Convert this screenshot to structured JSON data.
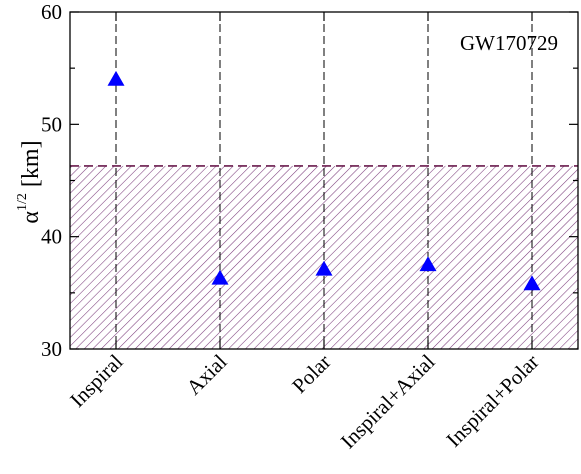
{
  "chart_data": {
    "type": "scatter",
    "categories": [
      "Inspiral",
      "Axial",
      "Polar",
      "Inspiral+Axial",
      "Inspiral+Polar"
    ],
    "values": [
      54.0,
      36.3,
      37.1,
      37.5,
      35.8
    ],
    "ylim": [
      30,
      60
    ],
    "yticks": [
      30,
      40,
      50,
      60
    ],
    "ylabel": {
      "base": "α",
      "sup": "1/2",
      "unit": "[km]"
    },
    "xlabel": "",
    "annotation": "GW170729",
    "excluded_region": {
      "from": 30,
      "to": 46.3
    },
    "marker": "triangle-up",
    "grid": "dashed vertical lines at categories",
    "colors": {
      "marker": "#0000ff",
      "hatch": "#7b3d7b",
      "threshold_line": "#6a1b4d"
    }
  }
}
